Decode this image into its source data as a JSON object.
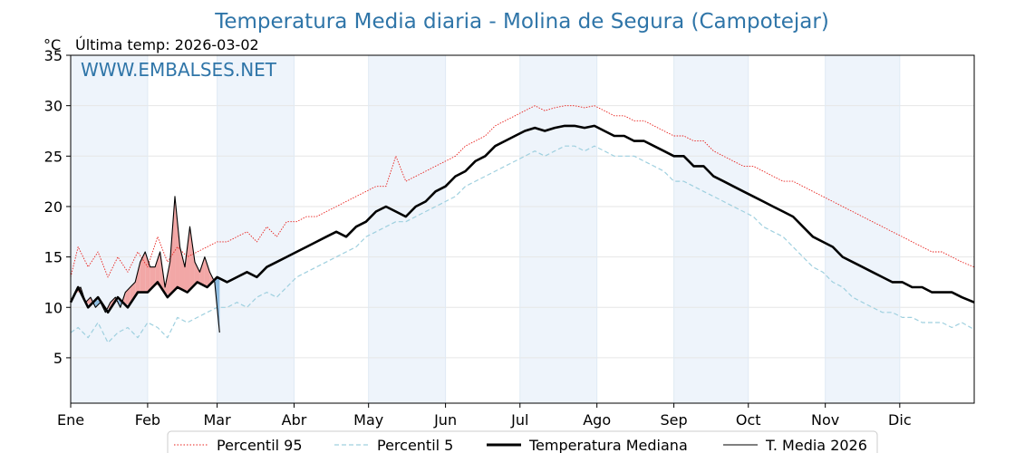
{
  "chart_data": {
    "type": "line",
    "title": "Temperatura Media diaria - Molina de Segura (Campotejar)",
    "unit_label": "°C",
    "last_temp": "Última temp: 2026-03-02",
    "watermark": "WWW.EMBALSES.NET",
    "ylim": [
      0.5,
      35
    ],
    "yticks": [
      5,
      10,
      15,
      20,
      25,
      30,
      35
    ],
    "xlim": [
      1,
      365
    ],
    "month_starts": [
      1,
      32,
      60,
      91,
      121,
      152,
      182,
      213,
      244,
      274,
      305,
      335
    ],
    "month_labels": [
      "Ene",
      "Feb",
      "Mar",
      "Abr",
      "May",
      "Jun",
      "Jul",
      "Ago",
      "Sep",
      "Oct",
      "Nov",
      "Dic"
    ],
    "shaded_months": [
      0,
      2,
      4,
      6,
      8,
      10
    ],
    "grid": true,
    "legend_position": "bottom-center",
    "colors": {
      "p95": "#e8211d",
      "p5": "#9fd0df",
      "median": "#000000",
      "current": "#000000",
      "fill_above": "#f2a7a6",
      "fill_below": "#8fbce0",
      "shade": "#eef4fb",
      "title": "#2f75a8"
    },
    "series": [
      {
        "name": "Percentil 95",
        "style": "dotted-red",
        "x": [
          1,
          4,
          8,
          12,
          16,
          20,
          24,
          28,
          32,
          36,
          40,
          44,
          48,
          52,
          56,
          60,
          64,
          68,
          72,
          76,
          80,
          84,
          88,
          92,
          96,
          100,
          104,
          108,
          112,
          116,
          120,
          124,
          128,
          132,
          136,
          140,
          144,
          148,
          152,
          156,
          160,
          164,
          168,
          172,
          176,
          180,
          184,
          188,
          192,
          196,
          200,
          204,
          208,
          212,
          216,
          220,
          224,
          228,
          232,
          236,
          240,
          244,
          248,
          252,
          256,
          260,
          264,
          268,
          272,
          276,
          280,
          284,
          288,
          292,
          296,
          300,
          304,
          308,
          312,
          316,
          320,
          324,
          328,
          332,
          336,
          340,
          344,
          348,
          352,
          356,
          360,
          365
        ],
        "y": [
          13.0,
          16.0,
          14.0,
          15.5,
          13.0,
          15.0,
          13.5,
          15.5,
          14.0,
          17.0,
          14.5,
          16.0,
          15.0,
          15.5,
          16.0,
          16.5,
          16.5,
          17.0,
          17.5,
          16.5,
          18.0,
          17.0,
          18.5,
          18.5,
          19.0,
          19.0,
          19.5,
          20.0,
          20.5,
          21.0,
          21.5,
          22.0,
          22.0,
          25.0,
          22.5,
          23.0,
          23.5,
          24.0,
          24.5,
          25.0,
          26.0,
          26.5,
          27.0,
          28.0,
          28.5,
          29.0,
          29.5,
          30.0,
          29.5,
          29.8,
          30.0,
          30.0,
          29.8,
          30.0,
          29.5,
          29.0,
          29.0,
          28.5,
          28.5,
          28.0,
          27.5,
          27.0,
          27.0,
          26.5,
          26.5,
          25.5,
          25.0,
          24.5,
          24.0,
          24.0,
          23.5,
          23.0,
          22.5,
          22.5,
          22.0,
          21.5,
          21.0,
          20.5,
          20.0,
          19.5,
          19.0,
          18.5,
          18.0,
          17.5,
          17.0,
          16.5,
          16.0,
          15.5,
          15.5,
          15.0,
          14.5,
          14.0
        ]
      },
      {
        "name": "Percentil 5",
        "style": "dashed-lightblue",
        "x": [
          1,
          4,
          8,
          12,
          16,
          20,
          24,
          28,
          32,
          36,
          40,
          44,
          48,
          52,
          56,
          60,
          64,
          68,
          72,
          76,
          80,
          84,
          88,
          92,
          96,
          100,
          104,
          108,
          112,
          116,
          120,
          124,
          128,
          132,
          136,
          140,
          144,
          148,
          152,
          156,
          160,
          164,
          168,
          172,
          176,
          180,
          184,
          188,
          192,
          196,
          200,
          204,
          208,
          212,
          216,
          220,
          224,
          228,
          232,
          236,
          240,
          244,
          248,
          252,
          256,
          260,
          264,
          268,
          272,
          276,
          280,
          284,
          288,
          292,
          296,
          300,
          304,
          308,
          312,
          316,
          320,
          324,
          328,
          332,
          336,
          340,
          344,
          348,
          352,
          356,
          360,
          365
        ],
        "y": [
          7.5,
          8.0,
          7.0,
          8.5,
          6.5,
          7.5,
          8.0,
          7.0,
          8.5,
          8.0,
          7.0,
          9.0,
          8.5,
          9.0,
          9.5,
          10.0,
          10.0,
          10.5,
          10.0,
          11.0,
          11.5,
          11.0,
          12.0,
          13.0,
          13.5,
          14.0,
          14.5,
          15.0,
          15.5,
          16.0,
          17.0,
          17.5,
          18.0,
          18.5,
          18.5,
          19.0,
          19.5,
          20.0,
          20.5,
          21.0,
          22.0,
          22.5,
          23.0,
          23.5,
          24.0,
          24.5,
          25.0,
          25.5,
          25.0,
          25.5,
          26.0,
          26.0,
          25.5,
          26.0,
          25.5,
          25.0,
          25.0,
          25.0,
          24.5,
          24.0,
          23.5,
          22.5,
          22.5,
          22.0,
          21.5,
          21.0,
          20.5,
          20.0,
          19.5,
          19.0,
          18.0,
          17.5,
          17.0,
          16.0,
          15.0,
          14.0,
          13.5,
          12.5,
          12.0,
          11.0,
          10.5,
          10.0,
          9.5,
          9.5,
          9.0,
          9.0,
          8.5,
          8.5,
          8.5,
          8.0,
          8.5,
          7.8
        ]
      },
      {
        "name": "Temperatura Mediana",
        "style": "thick-black",
        "x": [
          1,
          4,
          8,
          12,
          16,
          20,
          24,
          28,
          32,
          36,
          40,
          44,
          48,
          52,
          56,
          60,
          64,
          68,
          72,
          76,
          80,
          84,
          88,
          92,
          96,
          100,
          104,
          108,
          112,
          116,
          120,
          124,
          128,
          132,
          136,
          140,
          144,
          148,
          152,
          156,
          160,
          164,
          168,
          172,
          176,
          180,
          184,
          188,
          192,
          196,
          200,
          204,
          208,
          212,
          216,
          220,
          224,
          228,
          232,
          236,
          240,
          244,
          248,
          252,
          256,
          260,
          264,
          268,
          272,
          276,
          280,
          284,
          288,
          292,
          296,
          300,
          304,
          308,
          312,
          316,
          320,
          324,
          328,
          332,
          336,
          340,
          344,
          348,
          352,
          356,
          360,
          365
        ],
        "y": [
          10.5,
          12.0,
          10.0,
          11.0,
          9.5,
          11.0,
          10.0,
          11.5,
          11.5,
          12.5,
          11.0,
          12.0,
          11.5,
          12.5,
          12.0,
          13.0,
          12.5,
          13.0,
          13.5,
          13.0,
          14.0,
          14.5,
          15.0,
          15.5,
          16.0,
          16.5,
          17.0,
          17.5,
          17.0,
          18.0,
          18.5,
          19.5,
          20.0,
          19.5,
          19.0,
          20.0,
          20.5,
          21.5,
          22.0,
          23.0,
          23.5,
          24.5,
          25.0,
          26.0,
          26.5,
          27.0,
          27.5,
          27.8,
          27.5,
          27.8,
          28.0,
          28.0,
          27.8,
          28.0,
          27.5,
          27.0,
          27.0,
          26.5,
          26.5,
          26.0,
          25.5,
          25.0,
          25.0,
          24.0,
          24.0,
          23.0,
          22.5,
          22.0,
          21.5,
          21.0,
          20.5,
          20.0,
          19.5,
          19.0,
          18.0,
          17.0,
          16.5,
          16.0,
          15.0,
          14.5,
          14.0,
          13.5,
          13.0,
          12.5,
          12.5,
          12.0,
          12.0,
          11.5,
          11.5,
          11.5,
          11.0,
          10.5
        ]
      },
      {
        "name": "T. Media 2026",
        "style": "thin-black",
        "x": [
          1,
          3,
          5,
          7,
          9,
          11,
          13,
          15,
          17,
          19,
          21,
          23,
          25,
          27,
          29,
          31,
          33,
          35,
          37,
          39,
          41,
          43,
          45,
          47,
          49,
          51,
          53,
          55,
          57,
          59,
          61
        ],
        "y": [
          10.5,
          11.5,
          12.0,
          10.5,
          11.0,
          10.0,
          10.5,
          9.5,
          10.5,
          11.0,
          10.0,
          11.5,
          12.0,
          12.5,
          14.5,
          15.5,
          14.0,
          14.0,
          15.5,
          12.0,
          14.5,
          21.0,
          16.0,
          14.0,
          18.0,
          14.5,
          13.5,
          15.0,
          13.5,
          12.5,
          7.5
        ]
      }
    ]
  }
}
